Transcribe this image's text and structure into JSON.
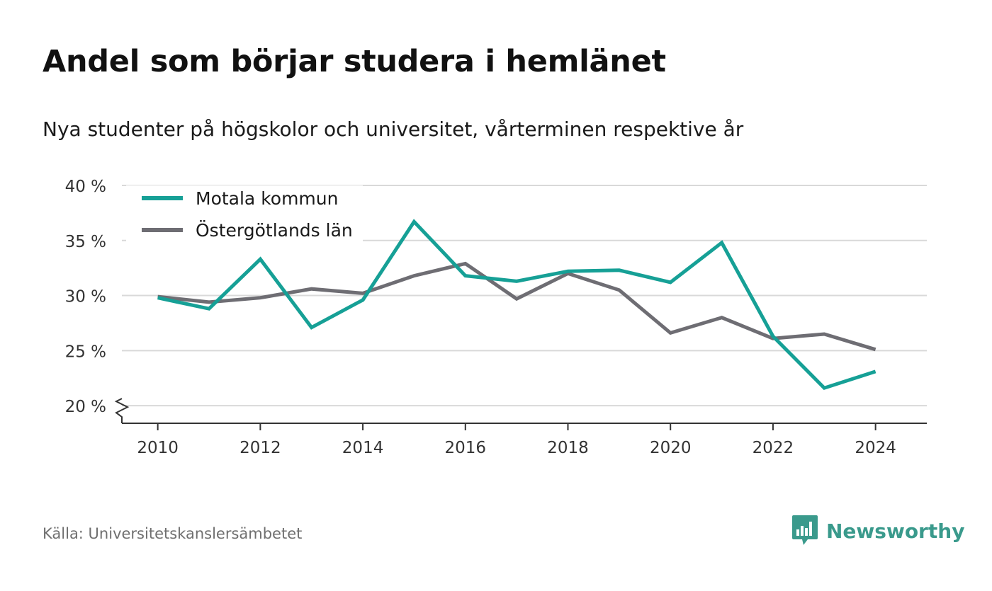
{
  "title": "Andel som börjar studera i hemlänet",
  "subtitle": "Nya studenter på högskolor och universitet, vårterminen respektive år",
  "source": "Källa: Universitetskanslersämbetet",
  "brand": {
    "name": "Newsworthy",
    "color": "#3a9a8c",
    "icon": "bar-chart-speech-bubble-icon"
  },
  "chart_data": {
    "type": "line",
    "title": "Andel som börjar studera i hemlänet",
    "subtitle": "Nya studenter på högskolor och universitet, vårterminen respektive år",
    "x": [
      2010,
      2011,
      2012,
      2013,
      2014,
      2015,
      2016,
      2017,
      2018,
      2019,
      2020,
      2021,
      2022,
      2023,
      2024
    ],
    "xticks": [
      2010,
      2012,
      2014,
      2016,
      2018,
      2020,
      2022,
      2024
    ],
    "xlim": [
      2009.3,
      2025.0
    ],
    "ylim": [
      18.4,
      40
    ],
    "yticks": [
      20,
      25,
      30,
      35,
      40
    ],
    "ytick_suffix": " %",
    "y_axis_break": true,
    "grid": true,
    "legend_position": "top-left",
    "series": [
      {
        "name": "Motala kommun",
        "color": "#16a096",
        "values": [
          29.8,
          28.8,
          33.3,
          27.1,
          29.6,
          36.7,
          31.8,
          31.3,
          32.2,
          32.3,
          31.2,
          34.8,
          26.3,
          21.6,
          23.1
        ]
      },
      {
        "name": "Östergötlands län",
        "color": "#6e6d73",
        "values": [
          29.9,
          29.4,
          29.8,
          30.6,
          30.2,
          31.8,
          32.9,
          29.7,
          32.0,
          30.5,
          26.6,
          28.0,
          26.1,
          26.5,
          25.1
        ]
      }
    ]
  }
}
